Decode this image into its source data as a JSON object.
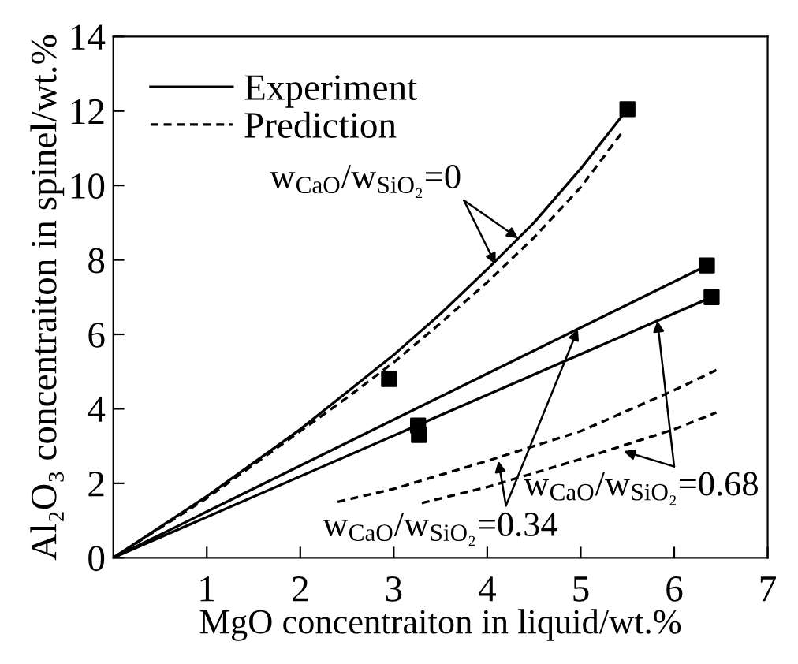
{
  "chart_data": {
    "type": "line",
    "xlabel": "MgO concentraiton in liquid/wt.%",
    "ylabel": "Al₂O₃ concentraiton in spinel/wt.%",
    "xlim": [
      0,
      7
    ],
    "ylim": [
      0,
      14
    ],
    "xticks": [
      1,
      2,
      3,
      4,
      5,
      6,
      7
    ],
    "yticks": [
      0,
      2,
      4,
      6,
      8,
      10,
      12,
      14
    ],
    "grid": false,
    "legend": "top left",
    "series": [
      {
        "name": "Experiment",
        "color": "#000000",
        "line_style": "solid",
        "marker": "none",
        "x": [
          0,
          1,
          2,
          3,
          3.5,
          4,
          4.5,
          5,
          5.5
        ],
        "values": [
          0,
          1.65,
          3.45,
          5.45,
          6.55,
          7.75,
          9.0,
          10.45,
          12.05
        ]
      },
      {
        "name": "Prediction",
        "color": "#000000",
        "line_style": "dashed",
        "marker": "none",
        "x": [
          0,
          1,
          2,
          2.5,
          3,
          3.5,
          4,
          4.5,
          5,
          5.45
        ],
        "values": [
          0,
          1.6,
          3.4,
          4.3,
          5.25,
          6.3,
          7.4,
          8.6,
          9.95,
          11.45
        ]
      },
      {
        "color": "#000000",
        "line_style": "solid",
        "marker": "none",
        "x": [
          0,
          6.35
        ],
        "values": [
          0,
          7.85
        ]
      },
      {
        "color": "#000000",
        "line_style": "solid",
        "marker": "none",
        "x": [
          0,
          6.4
        ],
        "values": [
          0,
          7.0
        ]
      },
      {
        "color": "#000000",
        "line_style": "dashed",
        "marker": "none",
        "x": [
          2.4,
          3,
          4,
          5,
          6,
          6.5
        ],
        "values": [
          1.5,
          1.85,
          2.6,
          3.4,
          4.5,
          5.1
        ]
      },
      {
        "color": "#000000",
        "line_style": "dashed",
        "marker": "none",
        "x": [
          3.3,
          4,
          5,
          6,
          6.45
        ],
        "values": [
          1.47,
          1.9,
          2.65,
          3.45,
          3.9
        ]
      },
      {
        "type": "scatter",
        "color": "#000000",
        "marker": "square",
        "x": [
          2.95,
          3.26,
          3.27,
          5.5,
          6.35,
          6.4
        ],
        "values": [
          4.8,
          3.55,
          3.3,
          12.05,
          7.85,
          7.0
        ]
      }
    ],
    "annotations": [
      {
        "text": "w$_{CaO}$/w$_{SiO₂}$=0",
        "x": 4.33,
        "y": 8.58
      },
      {
        "text": "w$_{CaO}$/w$_{SiO₂}$=0.34",
        "x": 4.97,
        "y": 6.14
      },
      {
        "text": "w$_{CaO}$/w$_{SiO₂}$=0.68",
        "x": 5.82,
        "y": 6.37
      }
    ]
  }
}
